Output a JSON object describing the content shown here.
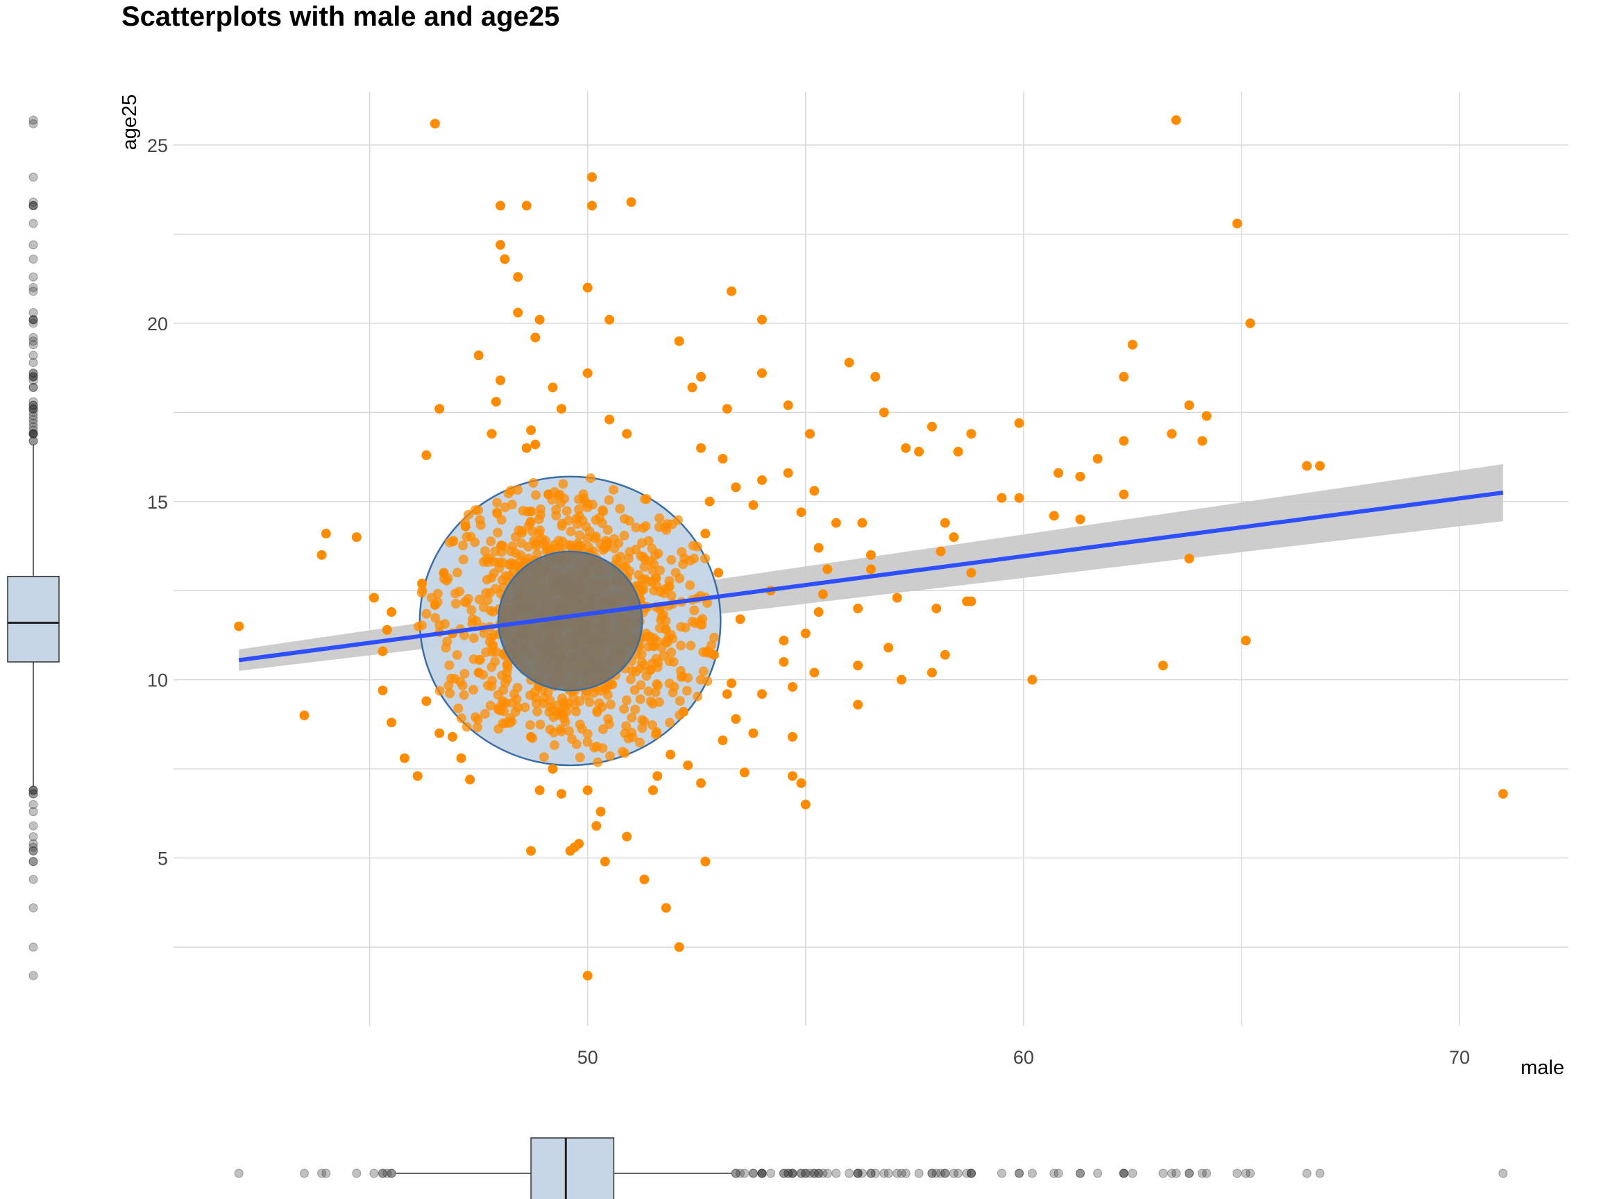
{
  "chart_data": {
    "type": "scatter",
    "title": "Scatterplots with male and age25",
    "xlabel": "male",
    "ylabel": "age25",
    "xlim": [
      40.5,
      72.5
    ],
    "ylim": [
      0.3,
      26.5
    ],
    "x_ticks": [
      50,
      60,
      70
    ],
    "y_ticks": [
      5,
      10,
      15,
      20,
      25
    ],
    "grid": true,
    "point_color": "#FF8C00",
    "line_color": "#2D4FFF",
    "band_color": "#C8C8C8",
    "ellipse_fill": "#C5D5E5",
    "ellipse_stroke": "#3A6EA5",
    "inner_ellipse_fill": "#7B7467",
    "boxplot_fill": "#C5D5E5",
    "regression": {
      "x": [
        42,
        71
      ],
      "y": [
        10.55,
        15.25
      ],
      "ci_lower": [
        10.25,
        14.45
      ],
      "ci_upper": [
        10.85,
        16.05
      ]
    },
    "ellipses": [
      {
        "level": "outer",
        "cx": 49.6,
        "cy": 11.65,
        "rx": 3.45,
        "ry": 4.05
      },
      {
        "level": "inner",
        "cx": 49.6,
        "cy": 11.65,
        "rx": 1.65,
        "ry": 1.95
      }
    ],
    "x_boxplot": {
      "q1": 48.7,
      "median": 49.5,
      "q3": 50.6,
      "whisker_low": 45.6,
      "whisker_high": 53.3
    },
    "y_boxplot": {
      "q1": 10.5,
      "median": 11.6,
      "q3": 12.9,
      "whisker_low": 7.0,
      "whisker_high": 16.6
    },
    "points": [
      [
        42.0,
        11.5
      ],
      [
        43.5,
        9.0
      ],
      [
        44.0,
        14.1
      ],
      [
        43.9,
        13.5
      ],
      [
        44.7,
        14.0
      ],
      [
        45.1,
        12.3
      ],
      [
        45.4,
        11.4
      ],
      [
        45.3,
        10.8
      ],
      [
        45.5,
        11.9
      ],
      [
        45.3,
        9.7
      ],
      [
        45.5,
        8.8
      ],
      [
        45.8,
        7.8
      ],
      [
        46.1,
        7.3
      ],
      [
        46.3,
        16.3
      ],
      [
        46.6,
        17.6
      ],
      [
        46.2,
        12.7
      ],
      [
        46.5,
        12.1
      ],
      [
        46.3,
        9.4
      ],
      [
        46.6,
        8.5
      ],
      [
        46.9,
        11.3
      ],
      [
        46.7,
        13.0
      ],
      [
        46.9,
        8.4
      ],
      [
        47.3,
        7.2
      ],
      [
        47.1,
        7.8
      ],
      [
        47.2,
        14.3
      ],
      [
        47.5,
        10.2
      ],
      [
        46.5,
        25.6
      ],
      [
        47.5,
        19.1
      ],
      [
        47.8,
        16.9
      ],
      [
        47.9,
        17.8
      ],
      [
        48.0,
        18.4
      ],
      [
        48.0,
        22.2
      ],
      [
        48.1,
        21.8
      ],
      [
        48.0,
        23.3
      ],
      [
        48.4,
        21.3
      ],
      [
        48.4,
        20.3
      ],
      [
        48.6,
        23.3
      ],
      [
        48.9,
        20.1
      ],
      [
        48.8,
        19.6
      ],
      [
        48.6,
        16.5
      ],
      [
        48.8,
        16.6
      ],
      [
        48.7,
        17.0
      ],
      [
        49.2,
        18.2
      ],
      [
        49.4,
        17.6
      ],
      [
        49.1,
        15.2
      ],
      [
        48.7,
        8.4
      ],
      [
        48.9,
        6.9
      ],
      [
        49.2,
        7.5
      ],
      [
        48.7,
        5.2
      ],
      [
        49.4,
        6.8
      ],
      [
        49.7,
        5.3
      ],
      [
        49.6,
        5.2
      ],
      [
        49.8,
        5.4
      ],
      [
        50.0,
        21.0
      ],
      [
        50.1,
        24.1
      ],
      [
        50.1,
        23.3
      ],
      [
        50.0,
        18.6
      ],
      [
        50.5,
        17.3
      ],
      [
        50.0,
        6.9
      ],
      [
        50.3,
        6.3
      ],
      [
        50.2,
        5.9
      ],
      [
        50.4,
        4.9
      ],
      [
        50.9,
        5.6
      ],
      [
        51.0,
        23.4
      ],
      [
        50.5,
        20.1
      ],
      [
        50.9,
        16.9
      ],
      [
        51.3,
        4.4
      ],
      [
        51.8,
        3.6
      ],
      [
        52.1,
        2.5
      ],
      [
        50.0,
        1.7
      ],
      [
        52.1,
        19.5
      ],
      [
        52.4,
        18.2
      ],
      [
        52.6,
        18.5
      ],
      [
        52.6,
        16.5
      ],
      [
        52.7,
        4.9
      ],
      [
        53.3,
        20.9
      ],
      [
        53.2,
        17.6
      ],
      [
        54.0,
        20.1
      ],
      [
        54.0,
        18.6
      ],
      [
        54.6,
        17.7
      ],
      [
        55.2,
        15.3
      ],
      [
        55.1,
        16.9
      ],
      [
        56.0,
        18.9
      ],
      [
        56.6,
        18.5
      ],
      [
        56.8,
        17.5
      ],
      [
        57.3,
        16.5
      ],
      [
        57.6,
        16.4
      ],
      [
        57.9,
        17.1
      ],
      [
        58.5,
        16.4
      ],
      [
        58.8,
        16.9
      ],
      [
        59.9,
        17.2
      ],
      [
        59.5,
        15.1
      ],
      [
        59.9,
        15.1
      ],
      [
        60.7,
        14.6
      ],
      [
        60.8,
        15.8
      ],
      [
        61.3,
        15.7
      ],
      [
        61.7,
        16.2
      ],
      [
        62.3,
        18.5
      ],
      [
        62.3,
        16.7
      ],
      [
        62.5,
        19.4
      ],
      [
        63.4,
        16.9
      ],
      [
        63.8,
        17.7
      ],
      [
        64.1,
        16.7
      ],
      [
        64.2,
        17.4
      ],
      [
        64.9,
        22.8
      ],
      [
        65.2,
        20.0
      ],
      [
        66.5,
        16.0
      ],
      [
        66.8,
        16.0
      ],
      [
        63.5,
        25.7
      ],
      [
        62.3,
        15.2
      ],
      [
        61.3,
        14.5
      ],
      [
        63.2,
        10.4
      ],
      [
        63.8,
        13.4
      ],
      [
        65.1,
        11.1
      ],
      [
        58.2,
        14.4
      ],
      [
        58.1,
        13.6
      ],
      [
        58.4,
        14.0
      ],
      [
        58.8,
        13.0
      ],
      [
        58.8,
        12.2
      ],
      [
        58.7,
        12.2
      ],
      [
        57.1,
        12.3
      ],
      [
        56.9,
        10.9
      ],
      [
        57.2,
        10.0
      ],
      [
        57.9,
        10.2
      ],
      [
        58.0,
        12.0
      ],
      [
        58.2,
        10.7
      ],
      [
        60.2,
        10.0
      ],
      [
        56.3,
        14.4
      ],
      [
        56.5,
        13.5
      ],
      [
        56.5,
        13.1
      ],
      [
        56.2,
        12.0
      ],
      [
        56.2,
        10.4
      ],
      [
        56.2,
        9.3
      ],
      [
        55.5,
        13.1
      ],
      [
        55.7,
        14.4
      ],
      [
        55.4,
        12.4
      ],
      [
        55.3,
        11.9
      ],
      [
        55.2,
        10.2
      ],
      [
        55.0,
        11.3
      ],
      [
        54.7,
        9.8
      ],
      [
        54.5,
        10.5
      ],
      [
        54.0,
        9.6
      ],
      [
        53.8,
        8.5
      ],
      [
        54.7,
        8.4
      ],
      [
        54.9,
        7.1
      ],
      [
        54.7,
        7.3
      ],
      [
        55.0,
        6.5
      ],
      [
        54.5,
        11.1
      ],
      [
        54.2,
        12.5
      ],
      [
        53.8,
        14.9
      ],
      [
        54.0,
        15.6
      ],
      [
        54.6,
        15.8
      ],
      [
        54.9,
        14.7
      ],
      [
        55.3,
        13.7
      ],
      [
        53.5,
        11.7
      ],
      [
        53.3,
        9.9
      ],
      [
        53.4,
        8.9
      ],
      [
        53.1,
        8.3
      ],
      [
        53.2,
        9.6
      ],
      [
        53.6,
        7.4
      ],
      [
        52.6,
        7.1
      ],
      [
        52.3,
        7.6
      ],
      [
        52.2,
        9.1
      ],
      [
        51.9,
        7.9
      ],
      [
        51.6,
        7.3
      ],
      [
        51.5,
        6.9
      ],
      [
        52.9,
        10.7
      ],
      [
        52.8,
        15.0
      ],
      [
        52.7,
        14.1
      ],
      [
        53.0,
        13.0
      ],
      [
        53.1,
        16.2
      ],
      [
        53.4,
        15.4
      ],
      [
        71.0,
        6.8
      ]
    ]
  }
}
